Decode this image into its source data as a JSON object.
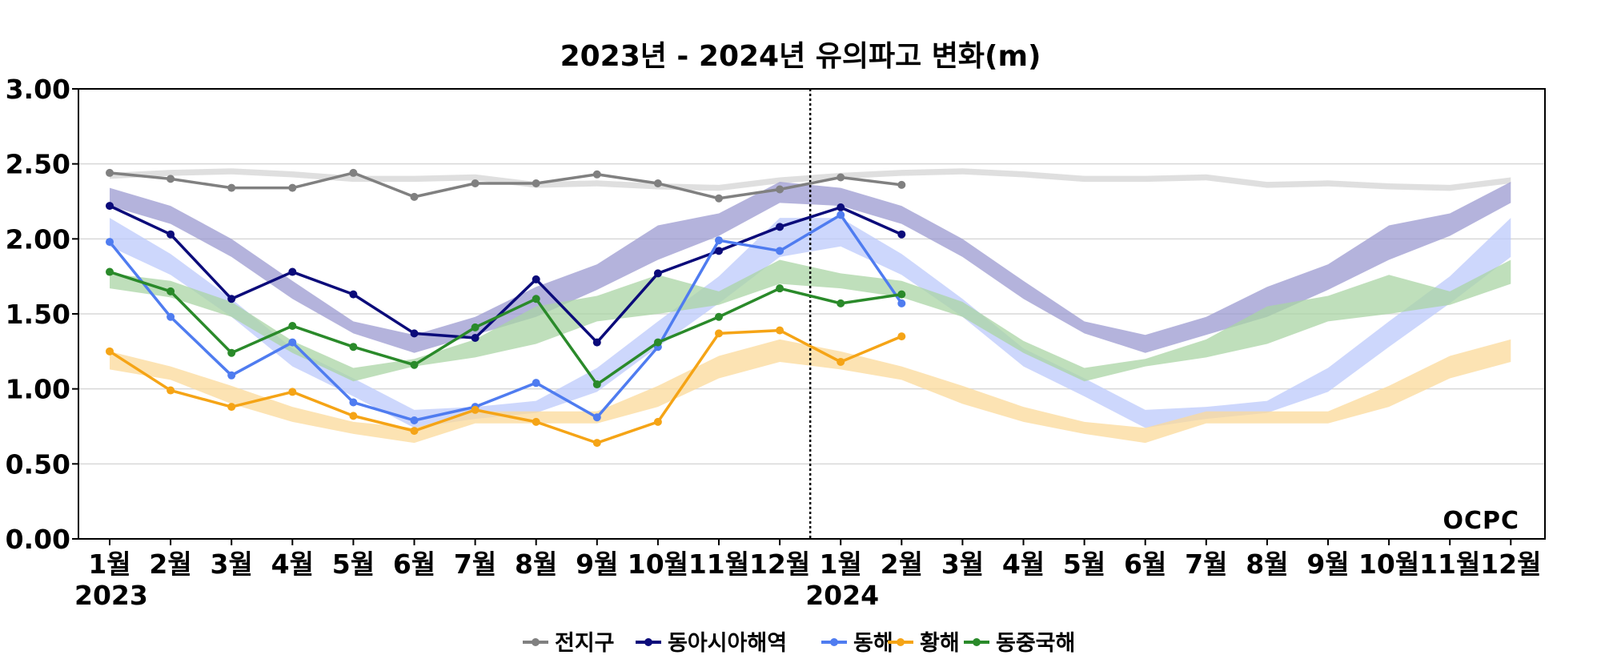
{
  "chart_data": {
    "type": "line",
    "title": "2023년 - 2024년 유의파고 변화(m)",
    "ylabel": "",
    "xlabel": "",
    "ylim": [
      0,
      3
    ],
    "y_ticks": [
      "0.00",
      "0.50",
      "1.00",
      "1.50",
      "2.00",
      "2.50",
      "3.00"
    ],
    "y_tick_values": [
      0,
      0.5,
      1.0,
      1.5,
      2.0,
      2.5,
      3.0
    ],
    "grid": "horizontal",
    "x_tick_labels": [
      "1월",
      "2월",
      "3월",
      "4월",
      "5월",
      "6월",
      "7월",
      "8월",
      "9월",
      "10월",
      "11월",
      "12월",
      "1월",
      "2월",
      "3월",
      "4월",
      "5월",
      "6월",
      "7월",
      "8월",
      "9월",
      "10월",
      "11월",
      "12월"
    ],
    "year_labels": [
      {
        "index": 0,
        "label": "2023"
      },
      {
        "index": 12,
        "label": "2024"
      }
    ],
    "divider_index": 11.5,
    "watermark": "OCPC",
    "legend_position": "bottom-center",
    "series": [
      {
        "name": "전지구",
        "color": "#808080",
        "values": [
          2.44,
          2.4,
          2.34,
          2.34,
          2.44,
          2.28,
          2.37,
          2.37,
          2.43,
          2.37,
          2.27,
          2.33,
          2.41,
          2.36
        ]
      },
      {
        "name": "동아시아해역",
        "color": "#0b0b7a",
        "values": [
          2.22,
          2.03,
          1.6,
          1.78,
          1.63,
          1.37,
          1.34,
          1.73,
          1.31,
          1.77,
          1.92,
          2.08,
          2.21,
          2.03
        ]
      },
      {
        "name": "동해",
        "color": "#4f7cf0",
        "values": [
          1.98,
          1.48,
          1.09,
          1.31,
          0.91,
          0.79,
          0.88,
          1.04,
          0.81,
          1.28,
          1.99,
          1.92,
          2.16,
          1.57
        ]
      },
      {
        "name": "황해",
        "color": "#f5a416",
        "values": [
          1.25,
          0.99,
          0.88,
          0.98,
          0.82,
          0.72,
          0.86,
          0.78,
          0.64,
          0.78,
          1.37,
          1.39,
          1.18,
          1.35
        ]
      },
      {
        "name": "동중국해",
        "color": "#2a8a2a",
        "values": [
          1.78,
          1.65,
          1.24,
          1.42,
          1.28,
          1.16,
          1.41,
          1.6,
          1.03,
          1.31,
          1.48,
          1.67,
          1.57,
          1.63
        ]
      }
    ],
    "climatology_bands": [
      {
        "name": "전지구",
        "color": "#d4d4d4",
        "low": [
          2.4,
          2.42,
          2.43,
          2.41,
          2.38,
          2.38,
          2.39,
          2.34,
          2.35,
          2.33,
          2.32,
          2.37
        ],
        "high": [
          2.44,
          2.46,
          2.47,
          2.45,
          2.42,
          2.42,
          2.43,
          2.38,
          2.39,
          2.37,
          2.36,
          2.41
        ]
      },
      {
        "name": "동아시아해역",
        "color": "#9b9ad0",
        "low": [
          2.22,
          2.1,
          1.88,
          1.6,
          1.37,
          1.24,
          1.36,
          1.48,
          1.66,
          1.86,
          2.02,
          2.24
        ],
        "high": [
          2.34,
          2.22,
          2.0,
          1.72,
          1.45,
          1.36,
          1.48,
          1.68,
          1.83,
          2.09,
          2.17,
          2.38
        ]
      },
      {
        "name": "동해",
        "color": "#bcc9fb",
        "low": [
          1.95,
          1.76,
          1.48,
          1.15,
          0.95,
          0.74,
          0.8,
          0.84,
          0.98,
          1.28,
          1.57,
          1.88
        ],
        "high": [
          2.14,
          1.9,
          1.6,
          1.27,
          1.07,
          0.86,
          0.88,
          0.92,
          1.14,
          1.45,
          1.75,
          2.14
        ]
      },
      {
        "name": "황해",
        "color": "#fbd99a",
        "low": [
          1.13,
          1.06,
          0.9,
          0.78,
          0.7,
          0.64,
          0.77,
          0.77,
          0.77,
          0.88,
          1.07,
          1.18
        ],
        "high": [
          1.25,
          1.15,
          1.02,
          0.88,
          0.78,
          0.74,
          0.85,
          0.85,
          0.85,
          1.02,
          1.22,
          1.33
        ]
      },
      {
        "name": "동중국해",
        "color": "#a9d4a4",
        "low": [
          1.67,
          1.61,
          1.48,
          1.24,
          1.05,
          1.15,
          1.21,
          1.3,
          1.45,
          1.5,
          1.56,
          1.7
        ],
        "high": [
          1.77,
          1.72,
          1.58,
          1.32,
          1.14,
          1.2,
          1.33,
          1.55,
          1.62,
          1.76,
          1.65,
          1.86
        ]
      }
    ]
  }
}
